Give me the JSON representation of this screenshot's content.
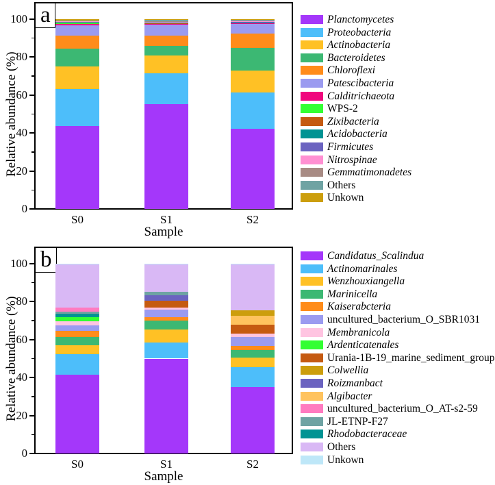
{
  "figure": {
    "background": "#ffffff",
    "frame_color": "#000000",
    "panels": [
      "a",
      "b"
    ]
  },
  "chart_data": [
    {
      "panel_label": "a",
      "type": "bar",
      "stacked": true,
      "orientation": "vertical",
      "title": "",
      "xlabel": "Sample",
      "ylabel": "Relative abundance (%)",
      "ylim": [
        0,
        109
      ],
      "yticks": [
        0,
        20,
        40,
        60,
        80,
        100
      ],
      "yticks_minor": [
        10,
        30,
        50,
        70,
        90
      ],
      "categories": [
        "S0",
        "S1",
        "S2"
      ],
      "grid": false,
      "legend_position": "right",
      "legend": [
        {
          "label": "Planctomycetes",
          "color": "#A437FA",
          "italic": true
        },
        {
          "label": "Proteobacteria",
          "color": "#4DBEFA",
          "italic": true
        },
        {
          "label": "Actinobacteria",
          "color": "#FFC125",
          "italic": true
        },
        {
          "label": "Bacteroidetes",
          "color": "#3CB873",
          "italic": true
        },
        {
          "label": "Chloroflexi",
          "color": "#FF8C1A",
          "italic": true
        },
        {
          "label": "Patescibacteria",
          "color": "#9B9BF0",
          "italic": true
        },
        {
          "label": "Calditrichaeota",
          "color": "#F0077E",
          "italic": true
        },
        {
          "label": "WPS-2",
          "color": "#33FF33",
          "italic": false
        },
        {
          "label": "Zixibacteria",
          "color": "#C55A11",
          "italic": true
        },
        {
          "label": "Acidobacteria",
          "color": "#009393",
          "italic": true
        },
        {
          "label": "Firmicutes",
          "color": "#6B63C0",
          "italic": true
        },
        {
          "label": "Nitrospinae",
          "color": "#FF8FD2",
          "italic": true
        },
        {
          "label": "Gemmatimonadetes",
          "color": "#A88B84",
          "italic": true
        },
        {
          "label": "Others",
          "color": "#6FA3A3",
          "italic": false
        },
        {
          "label": "Unkown",
          "color": "#CC9E0C",
          "italic": false
        }
      ],
      "bars": [
        {
          "category": "S0",
          "segments": [
            [
              "Planctomycetes",
              43.8
            ],
            [
              "Proteobacteria",
              19.2
            ],
            [
              "Actinobacteria",
              12.0
            ],
            [
              "Bacteroidetes",
              9.5
            ],
            [
              "Chloroflexi",
              7.0
            ],
            [
              "Patescibacteria",
              5.2
            ],
            [
              "Calditrichaeota",
              0.7
            ],
            [
              "WPS-2",
              1.0
            ],
            [
              "Zixibacteria",
              0.1
            ],
            [
              "Acidobacteria",
              0.1
            ],
            [
              "Firmicutes",
              0.1
            ],
            [
              "Nitrospinae",
              0.1
            ],
            [
              "Gemmatimonadetes",
              0.3
            ],
            [
              "Others",
              0.3
            ],
            [
              "Unkown",
              0.6
            ]
          ]
        },
        {
          "category": "S1",
          "segments": [
            [
              "Planctomycetes",
              55.3
            ],
            [
              "Proteobacteria",
              16.2
            ],
            [
              "Actinobacteria",
              9.5
            ],
            [
              "Bacteroidetes",
              5.0
            ],
            [
              "Chloroflexi",
              5.5
            ],
            [
              "Patescibacteria",
              6.0
            ],
            [
              "Calditrichaeota",
              0.15
            ],
            [
              "WPS-2",
              0.15
            ],
            [
              "Zixibacteria",
              0.1
            ],
            [
              "Acidobacteria",
              0.3
            ],
            [
              "Firmicutes",
              0.2
            ],
            [
              "Nitrospinae",
              0.1
            ],
            [
              "Gemmatimonadetes",
              0.4
            ],
            [
              "Others",
              0.8
            ],
            [
              "Unkown",
              0.3
            ]
          ]
        },
        {
          "category": "S2",
          "segments": [
            [
              "Planctomycetes",
              42.3
            ],
            [
              "Proteobacteria",
              19.2
            ],
            [
              "Actinobacteria",
              11.5
            ],
            [
              "Bacteroidetes",
              12.0
            ],
            [
              "Chloroflexi",
              7.5
            ],
            [
              "Patescibacteria",
              5.4
            ],
            [
              "Calditrichaeota",
              0.1
            ],
            [
              "WPS-2",
              0.1
            ],
            [
              "Zixibacteria",
              0.1
            ],
            [
              "Acidobacteria",
              0.1
            ],
            [
              "Firmicutes",
              0.3
            ],
            [
              "Nitrospinae",
              0.2
            ],
            [
              "Gemmatimonadetes",
              0.5
            ],
            [
              "Others",
              0.4
            ],
            [
              "Unkown",
              0.3
            ]
          ]
        }
      ]
    },
    {
      "panel_label": "b",
      "type": "bar",
      "stacked": true,
      "orientation": "vertical",
      "title": "",
      "xlabel": "Sample",
      "ylabel": "Relative abundance (%)",
      "ylim": [
        0,
        109
      ],
      "yticks": [
        0,
        20,
        40,
        60,
        80,
        100
      ],
      "yticks_minor": [
        10,
        30,
        50,
        70,
        90
      ],
      "categories": [
        "S0",
        "S1",
        "S2"
      ],
      "grid": false,
      "legend_position": "right",
      "legend": [
        {
          "label": "Candidatus_Scalindua",
          "color": "#A437FA",
          "italic": true
        },
        {
          "label": "Actinomarinales",
          "color": "#4DBEFA",
          "italic": true
        },
        {
          "label": "Wenzhouxiangella",
          "color": "#FFC125",
          "italic": true
        },
        {
          "label": "Marinicella",
          "color": "#3CB873",
          "italic": true
        },
        {
          "label": "Kaiserabcteria",
          "color": "#FF8C1A",
          "italic": true
        },
        {
          "label": "uncultured_bacterium_O_SBR1031",
          "color": "#9B9BF0",
          "italic": false
        },
        {
          "label": "Membranicola",
          "color": "#FFC4E1",
          "italic": true
        },
        {
          "label": "Ardenticatenales",
          "color": "#33FF33",
          "italic": true
        },
        {
          "label": "Urania-1B-19_marine_sediment_group",
          "color": "#C55A11",
          "italic": false
        },
        {
          "label": "Colwellia",
          "color": "#CC9E0C",
          "italic": true
        },
        {
          "label": "Roizmanbact",
          "color": "#6B63C0",
          "italic": true
        },
        {
          "label": "Algibacter",
          "color": "#FFC35E",
          "italic": true
        },
        {
          "label": "uncultured_bacterium_O_AT-s2-59",
          "color": "#FF7BC0",
          "italic": false
        },
        {
          "label": "JL-ETNP-F27",
          "color": "#6FA3A3",
          "italic": false
        },
        {
          "label": "Rhodobacteraceae",
          "color": "#009393",
          "italic": true
        },
        {
          "label": "Others",
          "color": "#D9B8F5",
          "italic": false
        },
        {
          "label": "Unkown",
          "color": "#BEE7F8",
          "italic": false
        }
      ],
      "bars": [
        {
          "category": "S0",
          "segments": [
            [
              "Candidatus_Scalindua",
              41.5
            ],
            [
              "Actinomarinales",
              11.0
            ],
            [
              "Wenzhouxiangella",
              4.5
            ],
            [
              "Marinicella",
              4.5
            ],
            [
              "Kaiserabcteria",
              3.0
            ],
            [
              "uncultured_bacterium_O_SBR1031",
              3.0
            ],
            [
              "Membranicola",
              2.0
            ],
            [
              "Ardenticatenales",
              2.5
            ],
            [
              "Rhodobacteraceae",
              1.5
            ],
            [
              "JL-ETNP-F27",
              1.2
            ],
            [
              "uncultured_bacterium_O_AT-s2-59",
              2.3
            ],
            [
              "Others",
              22.5
            ],
            [
              "Unkown",
              0.5
            ]
          ]
        },
        {
          "category": "S1",
          "segments": [
            [
              "Candidatus_Scalindua",
              50.0
            ],
            [
              "Actinomarinales",
              8.5
            ],
            [
              "Wenzhouxiangella",
              7.0
            ],
            [
              "Marinicella",
              4.5
            ],
            [
              "Kaiserabcteria",
              1.8
            ],
            [
              "uncultured_bacterium_O_SBR1031",
              4.0
            ],
            [
              "Membranicola",
              1.0
            ],
            [
              "Urania-1B-19_marine_sediment_group",
              3.6
            ],
            [
              "Roizmanbact",
              3.0
            ],
            [
              "JL-ETNP-F27",
              1.9
            ],
            [
              "Others",
              14.2
            ],
            [
              "Unkown",
              0.5
            ]
          ]
        },
        {
          "category": "S2",
          "segments": [
            [
              "Candidatus_Scalindua",
              35.0
            ],
            [
              "Actinomarinales",
              10.5
            ],
            [
              "Wenzhouxiangella",
              5.0
            ],
            [
              "Marinicella",
              4.0
            ],
            [
              "Kaiserabcteria",
              2.0
            ],
            [
              "uncultured_bacterium_O_SBR1031",
              5.0
            ],
            [
              "Membranicola",
              1.5
            ],
            [
              "Urania-1B-19_marine_sediment_group",
              4.8
            ],
            [
              "Algibacter",
              4.8
            ],
            [
              "Colwellia",
              2.9
            ],
            [
              "Others",
              24.0
            ],
            [
              "Unkown",
              0.5
            ]
          ]
        }
      ]
    }
  ]
}
